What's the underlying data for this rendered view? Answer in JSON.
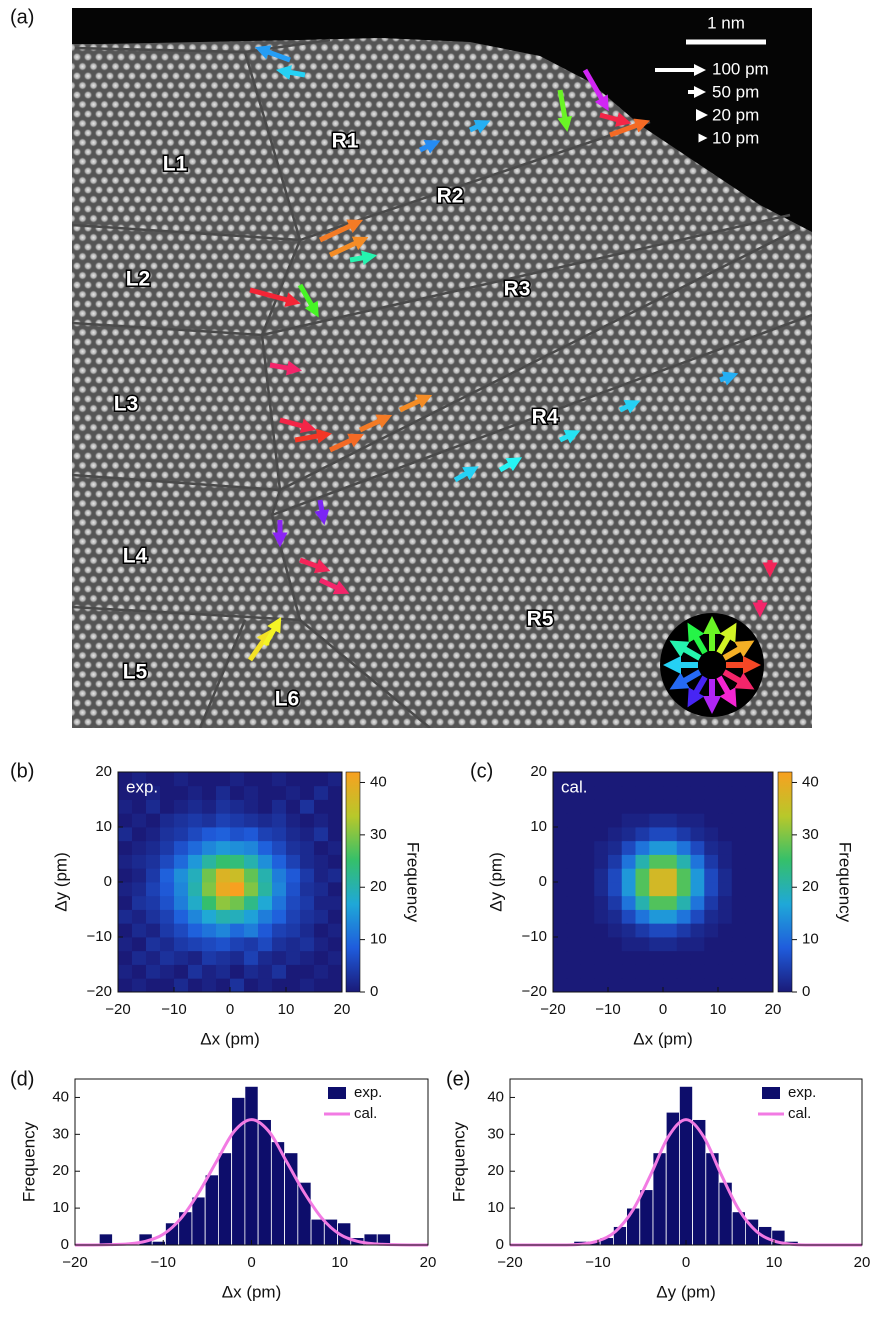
{
  "panel_a": {
    "panel_label": "(a)",
    "scale_bar": "1 nm",
    "arrow_scale": [
      "100 pm",
      "50 pm",
      "20 pm",
      "10 pm"
    ],
    "regions": [
      "L1",
      "L2",
      "L3",
      "L4",
      "L5",
      "L6",
      "R1",
      "R2",
      "R3",
      "R4",
      "R5"
    ]
  },
  "chart_data": [
    {
      "type": "heatmap",
      "panel_label": "(b)",
      "label": "exp.",
      "xlabel": "Δx  (pm)",
      "ylabel": "Δy  (pm)",
      "colorbar_label": "Frequency",
      "xbins": [
        -20,
        -17.5,
        -15,
        -12.5,
        -10,
        -7.5,
        -5,
        -2.5,
        0,
        2.5,
        5,
        7.5,
        10,
        12.5,
        15,
        17.5,
        20
      ],
      "ybins": [
        -20,
        -17.5,
        -15,
        -12.5,
        -10,
        -7.5,
        -5,
        -2.5,
        0,
        2.5,
        5,
        7.5,
        10,
        12.5,
        15,
        17.5,
        20
      ],
      "z": [
        [
          0,
          1,
          0,
          0,
          2,
          0,
          1,
          0,
          3,
          0,
          1,
          0,
          0,
          1,
          0,
          0
        ],
        [
          1,
          0,
          2,
          1,
          0,
          3,
          1,
          2,
          0,
          2,
          1,
          3,
          0,
          0,
          1,
          0
        ],
        [
          0,
          2,
          1,
          3,
          2,
          1,
          4,
          3,
          2,
          5,
          2,
          1,
          2,
          1,
          0,
          1
        ],
        [
          1,
          0,
          3,
          2,
          4,
          5,
          6,
          7,
          5,
          4,
          6,
          3,
          2,
          3,
          1,
          0
        ],
        [
          0,
          2,
          1,
          4,
          6,
          9,
          11,
          13,
          10,
          12,
          8,
          5,
          4,
          2,
          0,
          1
        ],
        [
          2,
          1,
          3,
          5,
          9,
          13,
          17,
          20,
          19,
          16,
          12,
          9,
          5,
          3,
          2,
          0
        ],
        [
          0,
          3,
          4,
          7,
          12,
          18,
          25,
          31,
          29,
          23,
          17,
          11,
          6,
          4,
          1,
          1
        ],
        [
          1,
          2,
          5,
          8,
          13,
          20,
          30,
          40,
          42,
          30,
          21,
          13,
          7,
          3,
          2,
          0
        ],
        [
          0,
          1,
          4,
          9,
          14,
          19,
          29,
          38,
          36,
          28,
          20,
          12,
          8,
          4,
          1,
          2
        ],
        [
          1,
          2,
          3,
          6,
          10,
          15,
          21,
          25,
          24,
          20,
          14,
          9,
          5,
          2,
          1,
          0
        ],
        [
          0,
          1,
          2,
          4,
          7,
          10,
          13,
          15,
          14,
          13,
          9,
          6,
          3,
          2,
          0,
          1
        ],
        [
          2,
          0,
          1,
          3,
          4,
          6,
          8,
          9,
          7,
          8,
          5,
          4,
          2,
          1,
          3,
          0
        ],
        [
          0,
          1,
          0,
          2,
          3,
          4,
          3,
          5,
          4,
          3,
          2,
          3,
          1,
          0,
          1,
          0
        ],
        [
          1,
          0,
          2,
          0,
          1,
          2,
          1,
          3,
          2,
          1,
          0,
          2,
          0,
          3,
          0,
          0
        ],
        [
          0,
          0,
          1,
          0,
          0,
          1,
          0,
          2,
          0,
          1,
          0,
          0,
          1,
          0,
          2,
          0
        ],
        [
          0,
          1,
          0,
          0,
          1,
          0,
          0,
          0,
          1,
          0,
          0,
          1,
          0,
          0,
          0,
          1
        ]
      ],
      "xlim": [
        -20,
        20
      ],
      "ylim": [
        -20,
        20
      ],
      "xticks": [
        {
          "value": -20,
          "label": "−20"
        },
        {
          "value": -10,
          "label": "−10"
        },
        0,
        10,
        20
      ],
      "yticks": [
        {
          "value": -20,
          "label": "−20"
        },
        {
          "value": -10,
          "label": "−10"
        },
        0,
        10,
        20
      ],
      "clim": [
        0,
        42
      ],
      "cticks": [
        0,
        10,
        20,
        30,
        40
      ],
      "colormap": [
        "#1a1a78",
        "#1f5cdc",
        "#1fa8d8",
        "#35c06a",
        "#b8c82a",
        "#f8a020"
      ]
    },
    {
      "type": "heatmap",
      "panel_label": "(c)",
      "label": "cal.",
      "xlabel": "Δx  (pm)",
      "ylabel": "Δy  (pm)",
      "colorbar_label": "Frequency",
      "xbins": [
        -20,
        -17.5,
        -15,
        -12.5,
        -10,
        -7.5,
        -5,
        -2.5,
        0,
        2.5,
        5,
        7.5,
        10,
        12.5,
        15,
        17.5,
        20
      ],
      "ybins": [
        -20,
        -17.5,
        -15,
        -12.5,
        -10,
        -7.5,
        -5,
        -2.5,
        0,
        2.5,
        5,
        7.5,
        10,
        12.5,
        15,
        17.5,
        20
      ],
      "z": [
        [
          0,
          0,
          0,
          0,
          0,
          0,
          0,
          0,
          0,
          0,
          0,
          0,
          0,
          0,
          0,
          0
        ],
        [
          0,
          0,
          0,
          0,
          0,
          0,
          0,
          0,
          0,
          0,
          0,
          0,
          0,
          0,
          0,
          0
        ],
        [
          0,
          0,
          0,
          0,
          0,
          0,
          0,
          0,
          0,
          0,
          0,
          0,
          0,
          0,
          0,
          0
        ],
        [
          0,
          0,
          0,
          0,
          0,
          1,
          1,
          2,
          2,
          1,
          1,
          0,
          0,
          0,
          0,
          0
        ],
        [
          0,
          0,
          0,
          0,
          1,
          2,
          4,
          6,
          6,
          4,
          2,
          1,
          0,
          0,
          0,
          0
        ],
        [
          0,
          0,
          0,
          1,
          2,
          6,
          11,
          15,
          15,
          11,
          6,
          2,
          1,
          0,
          0,
          0
        ],
        [
          0,
          0,
          0,
          1,
          4,
          11,
          20,
          27,
          27,
          20,
          11,
          4,
          1,
          0,
          0,
          0
        ],
        [
          0,
          0,
          0,
          2,
          6,
          15,
          27,
          37,
          37,
          27,
          15,
          6,
          2,
          0,
          0,
          0
        ],
        [
          0,
          0,
          0,
          2,
          6,
          15,
          27,
          37,
          37,
          27,
          15,
          6,
          2,
          0,
          0,
          0
        ],
        [
          0,
          0,
          0,
          1,
          4,
          11,
          20,
          27,
          27,
          20,
          11,
          4,
          1,
          0,
          0,
          0
        ],
        [
          0,
          0,
          0,
          1,
          2,
          6,
          11,
          15,
          15,
          11,
          6,
          2,
          1,
          0,
          0,
          0
        ],
        [
          0,
          0,
          0,
          0,
          1,
          2,
          4,
          6,
          6,
          4,
          2,
          1,
          0,
          0,
          0,
          0
        ],
        [
          0,
          0,
          0,
          0,
          0,
          1,
          1,
          2,
          2,
          1,
          1,
          0,
          0,
          0,
          0,
          0
        ],
        [
          0,
          0,
          0,
          0,
          0,
          0,
          0,
          0,
          0,
          0,
          0,
          0,
          0,
          0,
          0,
          0
        ],
        [
          0,
          0,
          0,
          0,
          0,
          0,
          0,
          0,
          0,
          0,
          0,
          0,
          0,
          0,
          0,
          0
        ],
        [
          0,
          0,
          0,
          0,
          0,
          0,
          0,
          0,
          0,
          0,
          0,
          0,
          0,
          0,
          0,
          0
        ]
      ],
      "xlim": [
        -20,
        20
      ],
      "ylim": [
        -20,
        20
      ],
      "xticks": [
        {
          "value": -20,
          "label": "−20"
        },
        {
          "value": -10,
          "label": "−10"
        },
        0,
        10,
        20
      ],
      "yticks": [
        {
          "value": -20,
          "label": "−20"
        },
        {
          "value": -10,
          "label": "−10"
        },
        0,
        10,
        20
      ],
      "clim": [
        0,
        42
      ],
      "cticks": [
        0,
        10,
        20,
        30,
        40
      ],
      "colormap": [
        "#1a1a78",
        "#1f5cdc",
        "#1fa8d8",
        "#35c06a",
        "#b8c82a",
        "#f8a020"
      ]
    },
    {
      "type": "histogram",
      "panel_label": "(d)",
      "xlabel": "Δx  (pm)",
      "ylabel": "Frequency",
      "legend": "upper right",
      "bins": [
        -17.25,
        -15.75,
        -14.25,
        -12.75,
        -11.25,
        -9.75,
        -8.25,
        -6.75,
        -5.25,
        -3.75,
        -2.25,
        -0.75,
        0.75,
        2.25,
        3.75,
        5.25,
        6.75,
        8.25,
        9.75,
        11.25,
        12.75,
        14.25,
        15.75
      ],
      "series": [
        {
          "name": "exp.",
          "color": "#0d0d6b",
          "values": [
            3,
            0,
            0,
            3,
            1,
            6,
            9,
            13,
            19,
            25,
            40,
            43,
            34,
            28,
            25,
            17,
            7,
            7,
            6,
            2,
            3,
            3
          ]
        },
        {
          "name": "cal.",
          "color": "#f27ae3",
          "x": [
            -20,
            -18,
            -16,
            -14,
            -12,
            -10,
            -8,
            -6,
            -4,
            -2,
            0,
            2,
            4,
            6,
            8,
            10,
            12,
            14,
            16,
            18,
            20
          ],
          "values": [
            0,
            0,
            0.1,
            0.3,
            1.0,
            2.9,
            7.2,
            14.1,
            22.5,
            30.7,
            34,
            30.7,
            22.5,
            14.1,
            7.2,
            2.9,
            1.0,
            0.3,
            0.1,
            0,
            0
          ]
        }
      ],
      "xlim": [
        -20,
        20
      ],
      "ylim": [
        0,
        45
      ],
      "xticks": [
        {
          "value": -20,
          "label": "−20"
        },
        {
          "value": -10,
          "label": "−10"
        },
        0,
        10,
        20
      ],
      "yticks": [
        0,
        10,
        20,
        30,
        40
      ]
    },
    {
      "type": "histogram",
      "panel_label": "(e)",
      "xlabel": "Δy  (pm)",
      "ylabel": "Frequency",
      "legend": "upper right",
      "bins": [
        -12.75,
        -11.25,
        -9.75,
        -8.25,
        -6.75,
        -5.25,
        -3.75,
        -2.25,
        -0.75,
        0.75,
        2.25,
        3.75,
        5.25,
        6.75,
        8.25,
        9.75,
        11.25,
        12.75
      ],
      "series": [
        {
          "name": "exp.",
          "color": "#0d0d6b",
          "values": [
            1,
            1,
            2,
            5,
            10,
            15,
            25,
            36,
            43,
            34,
            25,
            17,
            9,
            7,
            5,
            4,
            1
          ]
        },
        {
          "name": "cal.",
          "color": "#f27ae3",
          "x": [
            -20,
            -18,
            -16,
            -14,
            -12,
            -10,
            -8,
            -6,
            -4,
            -2,
            0,
            2,
            4,
            6,
            8,
            10,
            12,
            14,
            16,
            18,
            20
          ],
          "values": [
            0,
            0,
            0,
            0,
            0.2,
            1.1,
            3.7,
            9.6,
            19.1,
            29.4,
            34,
            29.4,
            19.1,
            9.6,
            3.7,
            1.1,
            0.2,
            0,
            0,
            0,
            0
          ]
        }
      ],
      "xlim": [
        -20,
        20
      ],
      "ylim": [
        0,
        45
      ],
      "xticks": [
        {
          "value": -20,
          "label": "−20"
        },
        {
          "value": -10,
          "label": "−10"
        },
        0,
        10,
        20
      ],
      "yticks": [
        0,
        10,
        20,
        30,
        40
      ]
    }
  ]
}
